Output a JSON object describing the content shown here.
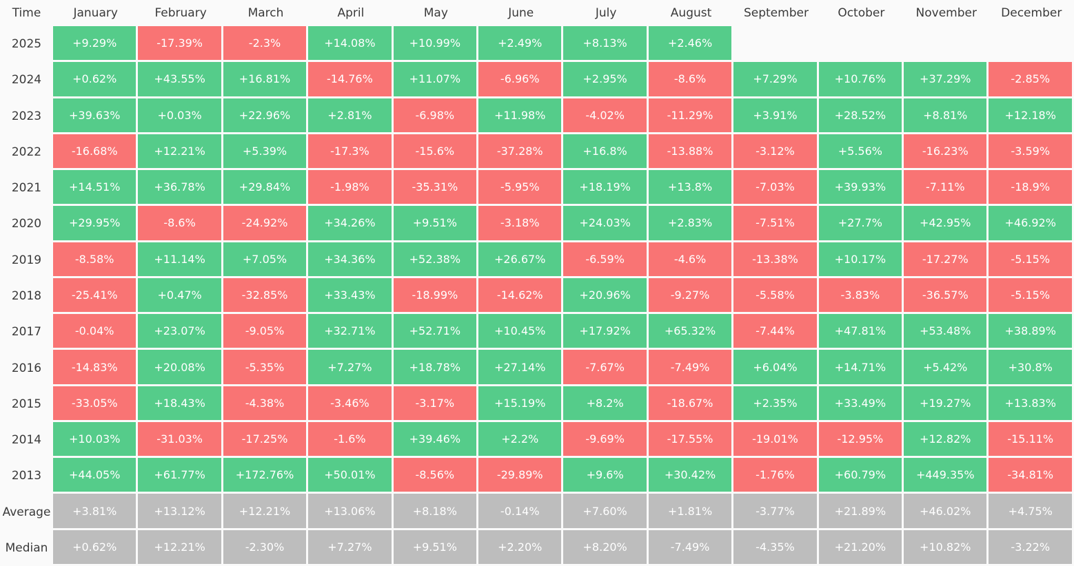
{
  "chart_data": {
    "type": "heatmap",
    "corner_label": "Time",
    "columns": [
      "January",
      "February",
      "March",
      "April",
      "May",
      "June",
      "July",
      "August",
      "September",
      "October",
      "November",
      "December"
    ],
    "colors": {
      "positive": "#55cc8a",
      "negative": "#f97474",
      "summary": "#bdbdbd"
    },
    "rows": [
      {
        "label": "2025",
        "values": [
          "+9.29%",
          "-17.39%",
          "-2.3%",
          "+14.08%",
          "+10.99%",
          "+2.49%",
          "+8.13%",
          "+2.46%",
          "",
          "",
          "",
          ""
        ]
      },
      {
        "label": "2024",
        "values": [
          "+0.62%",
          "+43.55%",
          "+16.81%",
          "-14.76%",
          "+11.07%",
          "-6.96%",
          "+2.95%",
          "-8.6%",
          "+7.29%",
          "+10.76%",
          "+37.29%",
          "-2.85%"
        ]
      },
      {
        "label": "2023",
        "values": [
          "+39.63%",
          "+0.03%",
          "+22.96%",
          "+2.81%",
          "-6.98%",
          "+11.98%",
          "-4.02%",
          "-11.29%",
          "+3.91%",
          "+28.52%",
          "+8.81%",
          "+12.18%"
        ]
      },
      {
        "label": "2022",
        "values": [
          "-16.68%",
          "+12.21%",
          "+5.39%",
          "-17.3%",
          "-15.6%",
          "-37.28%",
          "+16.8%",
          "-13.88%",
          "-3.12%",
          "+5.56%",
          "-16.23%",
          "-3.59%"
        ]
      },
      {
        "label": "2021",
        "values": [
          "+14.51%",
          "+36.78%",
          "+29.84%",
          "-1.98%",
          "-35.31%",
          "-5.95%",
          "+18.19%",
          "+13.8%",
          "-7.03%",
          "+39.93%",
          "-7.11%",
          "-18.9%"
        ]
      },
      {
        "label": "2020",
        "values": [
          "+29.95%",
          "-8.6%",
          "-24.92%",
          "+34.26%",
          "+9.51%",
          "-3.18%",
          "+24.03%",
          "+2.83%",
          "-7.51%",
          "+27.7%",
          "+42.95%",
          "+46.92%"
        ]
      },
      {
        "label": "2019",
        "values": [
          "-8.58%",
          "+11.14%",
          "+7.05%",
          "+34.36%",
          "+52.38%",
          "+26.67%",
          "-6.59%",
          "-4.6%",
          "-13.38%",
          "+10.17%",
          "-17.27%",
          "-5.15%"
        ]
      },
      {
        "label": "2018",
        "values": [
          "-25.41%",
          "+0.47%",
          "-32.85%",
          "+33.43%",
          "-18.99%",
          "-14.62%",
          "+20.96%",
          "-9.27%",
          "-5.58%",
          "-3.83%",
          "-36.57%",
          "-5.15%"
        ]
      },
      {
        "label": "2017",
        "values": [
          "-0.04%",
          "+23.07%",
          "-9.05%",
          "+32.71%",
          "+52.71%",
          "+10.45%",
          "+17.92%",
          "+65.32%",
          "-7.44%",
          "+47.81%",
          "+53.48%",
          "+38.89%"
        ]
      },
      {
        "label": "2016",
        "values": [
          "-14.83%",
          "+20.08%",
          "-5.35%",
          "+7.27%",
          "+18.78%",
          "+27.14%",
          "-7.67%",
          "-7.49%",
          "+6.04%",
          "+14.71%",
          "+5.42%",
          "+30.8%"
        ]
      },
      {
        "label": "2015",
        "values": [
          "-33.05%",
          "+18.43%",
          "-4.38%",
          "-3.46%",
          "-3.17%",
          "+15.19%",
          "+8.2%",
          "-18.67%",
          "+2.35%",
          "+33.49%",
          "+19.27%",
          "+13.83%"
        ]
      },
      {
        "label": "2014",
        "values": [
          "+10.03%",
          "-31.03%",
          "-17.25%",
          "-1.6%",
          "+39.46%",
          "+2.2%",
          "-9.69%",
          "-17.55%",
          "-19.01%",
          "-12.95%",
          "+12.82%",
          "-15.11%"
        ]
      },
      {
        "label": "2013",
        "values": [
          "+44.05%",
          "+61.77%",
          "+172.76%",
          "+50.01%",
          "-8.56%",
          "-29.89%",
          "+9.6%",
          "+30.42%",
          "-1.76%",
          "+60.79%",
          "+449.35%",
          "-34.81%"
        ]
      },
      {
        "label": "Average",
        "summary": true,
        "values": [
          "+3.81%",
          "+13.12%",
          "+12.21%",
          "+13.06%",
          "+8.18%",
          "-0.14%",
          "+7.60%",
          "+1.81%",
          "-3.77%",
          "+21.89%",
          "+46.02%",
          "+4.75%"
        ]
      },
      {
        "label": "Median",
        "summary": true,
        "values": [
          "+0.62%",
          "+12.21%",
          "-2.30%",
          "+7.27%",
          "+9.51%",
          "+2.20%",
          "+8.20%",
          "-7.49%",
          "-4.35%",
          "+21.20%",
          "+10.82%",
          "-3.22%"
        ]
      }
    ]
  }
}
